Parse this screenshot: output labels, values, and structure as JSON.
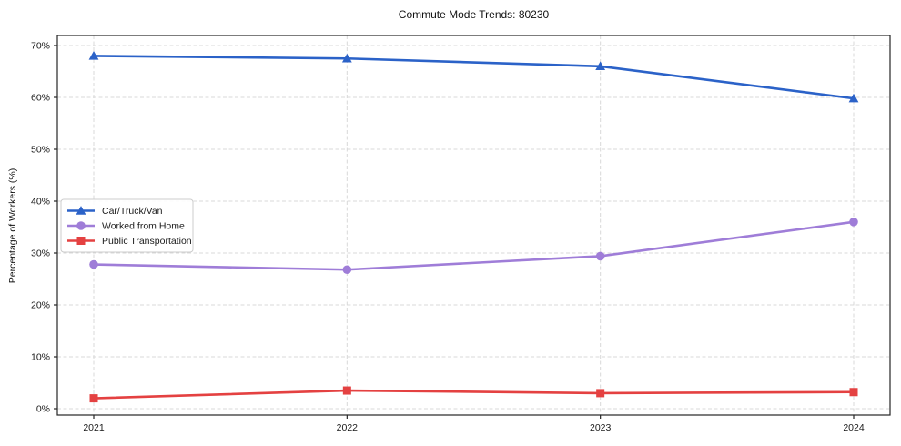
{
  "chart_data": {
    "type": "line",
    "title": "Commute Mode Trends: 80230",
    "xlabel": "",
    "ylabel": "Percentage of Workers (%)",
    "x": [
      "2021",
      "2022",
      "2023",
      "2024"
    ],
    "series": [
      {
        "name": "Car/Truck/Van",
        "color": "#2b62c8",
        "marker": "triangle",
        "values": [
          68.0,
          67.5,
          66.0,
          59.8
        ]
      },
      {
        "name": "Worked from Home",
        "color": "#9f7dd8",
        "marker": "circle",
        "values": [
          27.8,
          26.8,
          29.4,
          36.0
        ]
      },
      {
        "name": "Public Transportation",
        "color": "#e44141",
        "marker": "square",
        "values": [
          2.0,
          3.5,
          3.0,
          3.2
        ]
      }
    ],
    "ylim": [
      0,
      70
    ],
    "ytick_step": 10,
    "ytick_labels": [
      "0%",
      "10%",
      "20%",
      "30%",
      "40%",
      "50%",
      "60%",
      "70%"
    ],
    "grid": true,
    "grid_color": "#d9d9d9",
    "axes_color": "#262626",
    "legend_position": "center-left",
    "legend_entries": [
      "Car/Truck/Van",
      "Worked from Home",
      "Public Transportation"
    ]
  }
}
